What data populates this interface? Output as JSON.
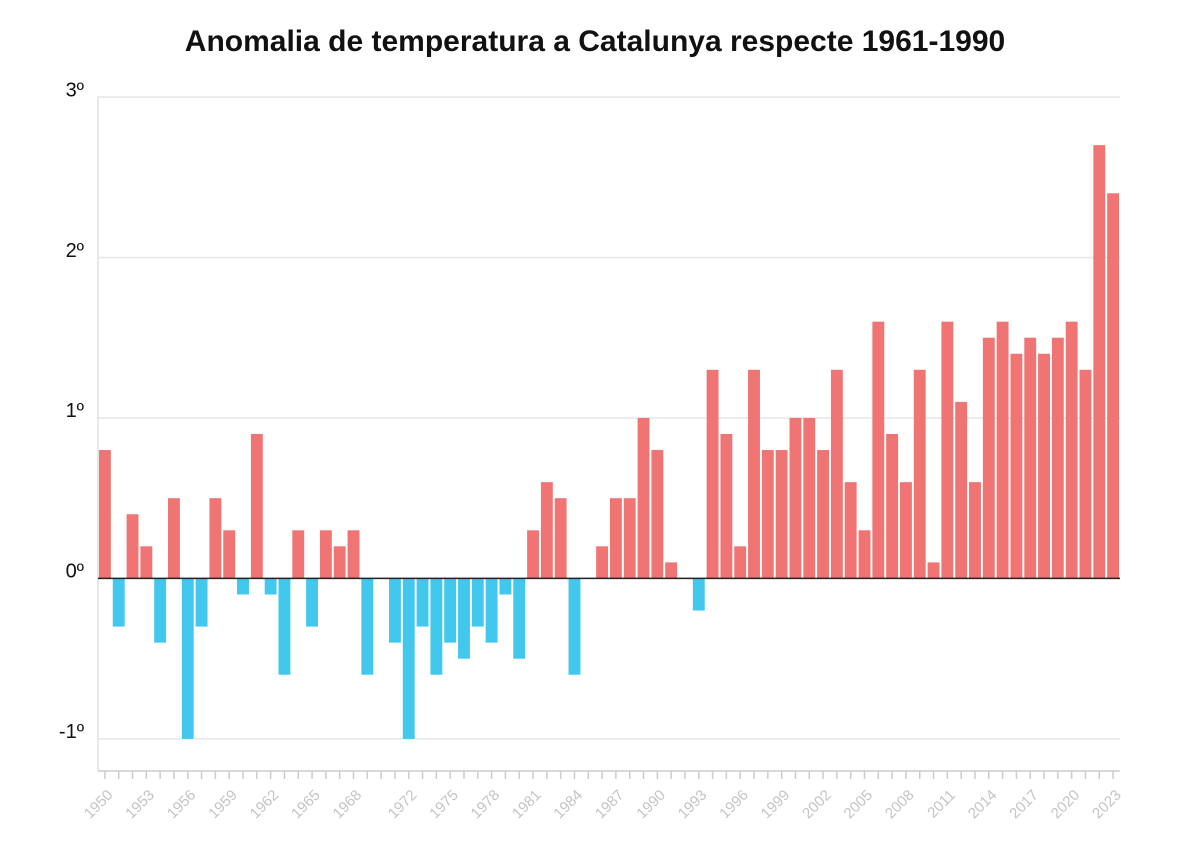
{
  "chart_data": {
    "type": "bar",
    "title": "Anomalia de temperatura a Catalunya respecte 1961-1990",
    "categories": [
      "1950",
      null,
      null,
      "1953",
      null,
      null,
      "1956",
      null,
      null,
      "1959",
      null,
      null,
      "1962",
      null,
      null,
      "1965",
      null,
      null,
      "1968",
      null,
      null,
      null,
      "1972",
      null,
      null,
      "1975",
      null,
      null,
      "1978",
      null,
      null,
      "1981",
      null,
      null,
      "1984",
      null,
      null,
      "1987",
      null,
      null,
      "1990",
      null,
      null,
      "1993",
      null,
      null,
      "1996",
      null,
      null,
      "1999",
      null,
      null,
      "2002",
      null,
      null,
      "2005",
      null,
      null,
      "2008",
      null,
      null,
      "2011",
      null,
      null,
      "2014",
      null,
      null,
      "2017",
      null,
      null,
      "2020",
      null,
      null,
      "2023"
    ],
    "values": [
      0.8,
      -0.3,
      0.4,
      0.2,
      -0.4,
      0.5,
      -1.0,
      -0.3,
      0.5,
      0.3,
      -0.1,
      0.9,
      -0.1,
      -0.6,
      0.3,
      -0.3,
      0.3,
      0.2,
      0.3,
      -0.6,
      0,
      -0.4,
      -1.0,
      -0.3,
      -0.6,
      -0.4,
      -0.5,
      -0.3,
      -0.4,
      -0.1,
      -0.5,
      0.3,
      0.6,
      0.5,
      -0.6,
      0,
      0.2,
      0.5,
      0.5,
      1.0,
      0.8,
      0.1,
      0,
      -0.2,
      1.3,
      0.9,
      0.2,
      1.3,
      0.8,
      0.8,
      1.0,
      1.0,
      0.8,
      1.3,
      0.6,
      0.3,
      1.6,
      0.9,
      0.6,
      1.3,
      0.1,
      1.6,
      1.1,
      0.6,
      1.5,
      1.6,
      1.4,
      1.5,
      1.4,
      1.5,
      1.6,
      1.3,
      2.7,
      2.4
    ],
    "color_positive": "#f07474",
    "color_negative": "#41c8ec",
    "ylim": [
      -1.2,
      3.0
    ],
    "yticks": [
      {
        "value": -1,
        "label": "-1º"
      },
      {
        "value": 0,
        "label": "0º"
      },
      {
        "value": 1,
        "label": "1º"
      },
      {
        "value": 2,
        "label": "2º"
      },
      {
        "value": 3,
        "label": "3º"
      }
    ],
    "grid": true
  }
}
